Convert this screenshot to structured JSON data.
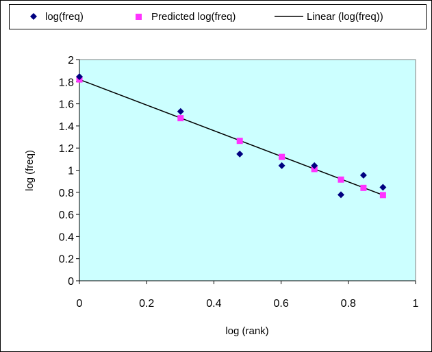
{
  "chart_data": {
    "type": "scatter",
    "xlabel": "log (rank)",
    "ylabel": "log (freq)",
    "xlim": [
      0,
      1
    ],
    "ylim": [
      0,
      2
    ],
    "xticks": [
      "0",
      "0.2",
      "0.4",
      "0.6",
      "0.8",
      "1"
    ],
    "yticks": [
      "0",
      "0.2",
      "0.4",
      "0.6",
      "0.8",
      "1",
      "1.2",
      "1.4",
      "1.6",
      "1.8",
      "2"
    ],
    "grid": false,
    "legend_position": "top",
    "plot_background": "#ccffff",
    "series": [
      {
        "name": "log(freq)",
        "marker": "diamond",
        "color": "#000080",
        "x": [
          0,
          0.301,
          0.477,
          0.602,
          0.699,
          0.778,
          0.845,
          0.903
        ],
        "y": [
          1.845,
          1.531,
          1.146,
          1.041,
          1.041,
          0.778,
          0.954,
          0.845
        ]
      },
      {
        "name": "Predicted log(freq)",
        "marker": "square",
        "color": "#ff33ff",
        "x": [
          0,
          0.301,
          0.477,
          0.602,
          0.699,
          0.778,
          0.845,
          0.903
        ],
        "y": [
          1.82,
          1.47,
          1.265,
          1.12,
          1.01,
          0.915,
          0.84,
          0.775
        ]
      },
      {
        "name": "Linear (log(freq))",
        "type": "line",
        "color": "#000000",
        "x": [
          0,
          0.903
        ],
        "y": [
          1.82,
          0.775
        ]
      }
    ]
  }
}
